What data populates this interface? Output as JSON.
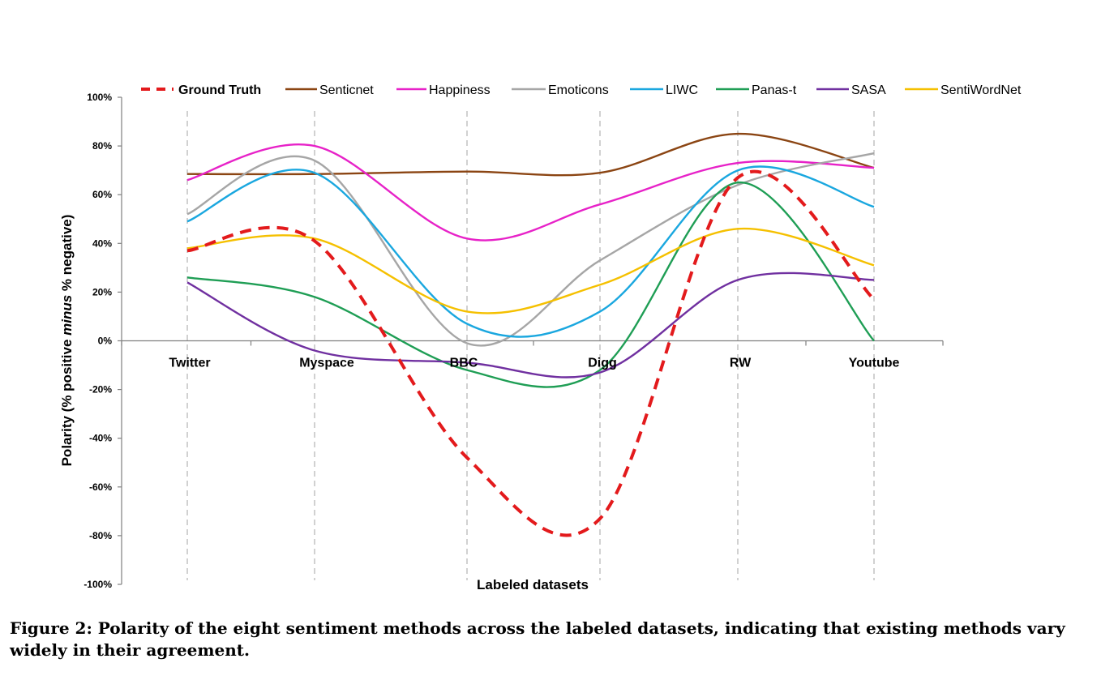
{
  "caption": "Figure 2: Polarity of the eight sentiment methods across the labeled datasets, indicating that existing methods vary widely in their agreement.",
  "chart_data": {
    "type": "line",
    "title": "",
    "xlabel": "Labeled datasets",
    "ylabel_parts": [
      "Polarity (% positive ",
      "minus",
      " % negative)"
    ],
    "ylabel": "Polarity (% positive minus % negative)",
    "categories": [
      "Twitter",
      "Myspace",
      "BBC",
      "Digg",
      "RW",
      "Youtube"
    ],
    "ylim": [
      -100,
      100
    ],
    "yticks": [
      100,
      80,
      60,
      40,
      20,
      0,
      -20,
      -40,
      -60,
      -80,
      -100
    ],
    "ytick_labels": [
      "100%",
      "80%",
      "60%",
      "40%",
      "20%",
      "0%",
      "-20%",
      "-40%",
      "-60%",
      "-80%",
      "-100%"
    ],
    "grid": "vertical dashed lines at categories",
    "legend_position": "top",
    "series": [
      {
        "name": "Ground Truth",
        "color": "#e31a1c",
        "dashed": true,
        "values": [
          37,
          41,
          -48,
          -73,
          67,
          17
        ]
      },
      {
        "name": "Senticnet",
        "color": "#8b4513",
        "dashed": false,
        "values": [
          68.5,
          68.5,
          69.5,
          69,
          85,
          71
        ]
      },
      {
        "name": "Happiness",
        "color": "#e722c8",
        "dashed": false,
        "values": [
          66,
          80,
          42,
          56,
          73,
          71
        ]
      },
      {
        "name": "Emoticons",
        "color": "#a6a6a6",
        "dashed": false,
        "values": [
          52,
          74,
          -1,
          33,
          64,
          77
        ]
      },
      {
        "name": "LIWC",
        "color": "#1aa7df",
        "dashed": false,
        "values": [
          49,
          69,
          7,
          12,
          70,
          55
        ]
      },
      {
        "name": "Panas-t",
        "color": "#1f9e55",
        "dashed": false,
        "values": [
          26,
          18,
          -12,
          -12,
          65,
          0
        ]
      },
      {
        "name": "SASA",
        "color": "#7030a0",
        "dashed": false,
        "values": [
          24,
          -4,
          -9,
          -13,
          25,
          25
        ]
      },
      {
        "name": "SentiWordNet",
        "color": "#f5c000",
        "dashed": false,
        "values": [
          38,
          42,
          12,
          23,
          46,
          31
        ]
      }
    ]
  }
}
